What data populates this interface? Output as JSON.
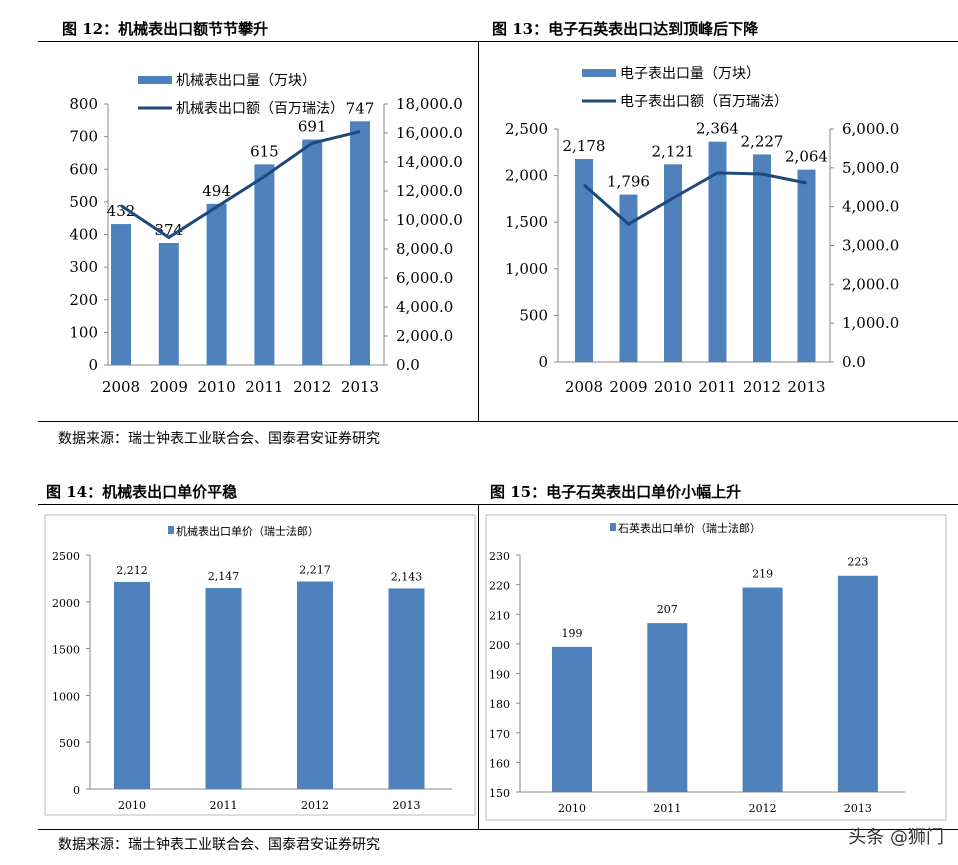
{
  "titles": {
    "fig12": "图 12：机械表出口额节节攀升",
    "fig13": "图 13：电子石英表出口达到顶峰后下降",
    "fig14": "图 14：机械表出口单价平稳",
    "fig15": "图 15：电子石英表出口单价小幅上升"
  },
  "source": "数据来源：瑞士钟表工业联合会、国泰君安证券研究",
  "watermark": "头条 @狮门",
  "colors": {
    "bar": "#4F81BD",
    "line": "#1F497D"
  },
  "chart_data": [
    {
      "type": "bar+line",
      "categories": [
        "2008",
        "2009",
        "2010",
        "2011",
        "2012",
        "2013"
      ],
      "series": [
        {
          "name": "机械表出口量（万块）",
          "type": "bar",
          "axis": "left",
          "values": [
            432,
            374,
            494,
            615,
            691,
            747
          ]
        },
        {
          "name": "机械表出口额（百万瑞法）",
          "type": "line",
          "axis": "right",
          "values": [
            11000,
            8800,
            10900,
            13000,
            15300,
            16100
          ]
        }
      ],
      "ylim": [
        0,
        800
      ],
      "yticks": [
        "0",
        "100",
        "200",
        "300",
        "400",
        "500",
        "600",
        "700",
        "800"
      ],
      "y2lim": [
        0,
        18000
      ],
      "y2ticks": [
        "0.0",
        "2,000.0",
        "4,000.0",
        "6,000.0",
        "8,000.0",
        "10,000.0",
        "12,000.0",
        "14,000.0",
        "16,000.0",
        "18,000.0"
      ],
      "data_labels": [
        "432",
        "374",
        "494",
        "615",
        "691",
        "747"
      ],
      "legend": "top"
    },
    {
      "type": "bar+line",
      "categories": [
        "2008",
        "2009",
        "2010",
        "2011",
        "2012",
        "2013"
      ],
      "series": [
        {
          "name": "电子表出口量（万块）",
          "type": "bar",
          "axis": "left",
          "values": [
            2178,
            1796,
            2121,
            2364,
            2227,
            2064
          ]
        },
        {
          "name": "电子表出口额（百万瑞法）",
          "type": "line",
          "axis": "right",
          "values": [
            4560,
            3550,
            4220,
            4870,
            4840,
            4610
          ]
        }
      ],
      "ylim": [
        0,
        2500
      ],
      "yticks": [
        "0",
        "500",
        "1,000",
        "1,500",
        "2,000",
        "2,500"
      ],
      "y2lim": [
        0,
        6000
      ],
      "y2ticks": [
        "0.0",
        "1,000.0",
        "2,000.0",
        "3,000.0",
        "4,000.0",
        "5,000.0",
        "6,000.0"
      ],
      "data_labels": [
        "2,178",
        "1,796",
        "2,121",
        "2,364",
        "2,227",
        "2,064"
      ],
      "legend": "top"
    },
    {
      "type": "bar",
      "categories": [
        "2010",
        "2011",
        "2012",
        "2013"
      ],
      "series": [
        {
          "name": "机械表出口单价（瑞士法郎）",
          "values": [
            2212,
            2147,
            2217,
            2143
          ]
        }
      ],
      "ylim": [
        0,
        2500
      ],
      "yticks": [
        "0",
        "500",
        "1000",
        "1500",
        "2000",
        "2500"
      ],
      "data_labels": [
        "2,212",
        "2,147",
        "2,217",
        "2,143"
      ],
      "legend": "top"
    },
    {
      "type": "bar",
      "categories": [
        "2010",
        "2011",
        "2012",
        "2013"
      ],
      "series": [
        {
          "name": "石英表出口单价（瑞士法郎）",
          "values": [
            199,
            207,
            219,
            223
          ]
        }
      ],
      "ylim": [
        150,
        230
      ],
      "yticks": [
        "150",
        "160",
        "170",
        "180",
        "190",
        "200",
        "210",
        "220",
        "230"
      ],
      "data_labels": [
        "199",
        "207",
        "219",
        "223"
      ],
      "legend": "top"
    }
  ]
}
